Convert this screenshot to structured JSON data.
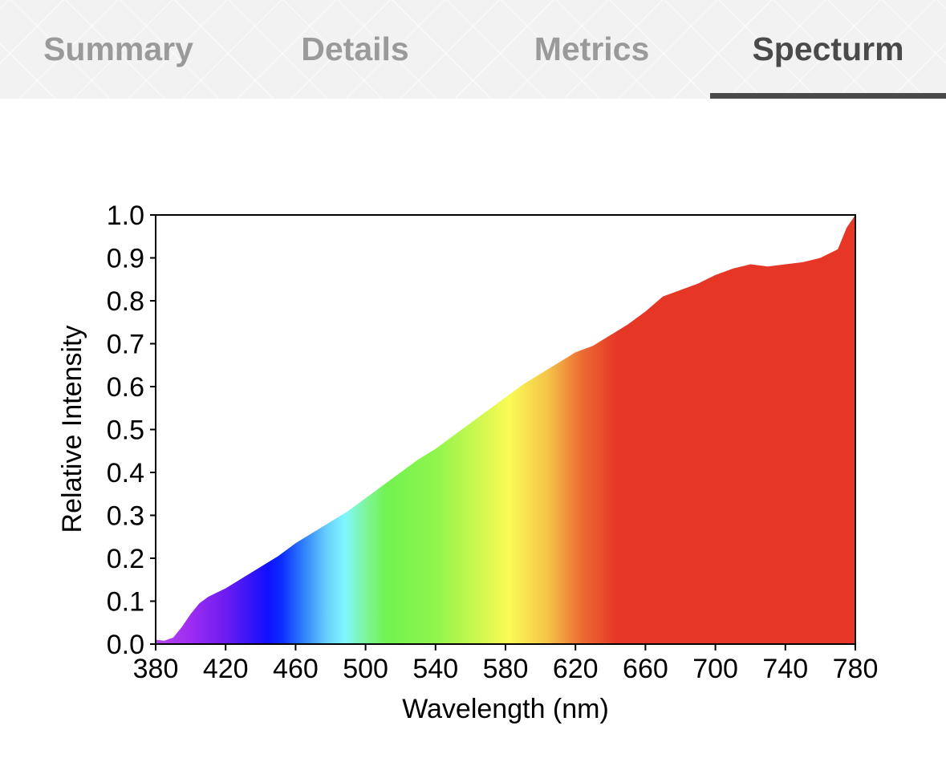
{
  "tabs": [
    {
      "label": "Summary",
      "active": false
    },
    {
      "label": "Details",
      "active": false
    },
    {
      "label": "Metrics",
      "active": false
    },
    {
      "label": "Specturm",
      "active": true
    }
  ],
  "colors": {
    "tab_inactive": "#9a9a9a",
    "tab_active": "#4a4a4a",
    "spectrum_red": "#e63626"
  },
  "chart_data": {
    "type": "area",
    "title": "",
    "xlabel": "Wavelength (nm)",
    "ylabel": "Relative Intensity",
    "xlim": [
      380,
      780
    ],
    "ylim": [
      0.0,
      1.0
    ],
    "xticks": [
      380,
      420,
      460,
      500,
      540,
      580,
      620,
      660,
      700,
      740,
      780
    ],
    "yticks": [
      "0.0",
      "0.1",
      "0.2",
      "0.3",
      "0.4",
      "0.5",
      "0.6",
      "0.7",
      "0.8",
      "0.9",
      "1.0"
    ],
    "grid": false,
    "fill": "visible-spectrum-gradient",
    "x": [
      380,
      385,
      390,
      395,
      400,
      405,
      410,
      415,
      420,
      430,
      440,
      450,
      460,
      470,
      480,
      490,
      500,
      510,
      520,
      530,
      540,
      550,
      560,
      570,
      580,
      590,
      600,
      610,
      620,
      630,
      640,
      650,
      660,
      670,
      680,
      690,
      700,
      710,
      720,
      730,
      740,
      750,
      760,
      770,
      775,
      780
    ],
    "y": [
      0.01,
      0.008,
      0.015,
      0.04,
      0.07,
      0.095,
      0.11,
      0.12,
      0.13,
      0.155,
      0.18,
      0.205,
      0.235,
      0.26,
      0.285,
      0.31,
      0.34,
      0.37,
      0.4,
      0.43,
      0.455,
      0.485,
      0.515,
      0.545,
      0.575,
      0.605,
      0.63,
      0.655,
      0.68,
      0.695,
      0.72,
      0.745,
      0.775,
      0.81,
      0.825,
      0.84,
      0.86,
      0.875,
      0.885,
      0.88,
      0.885,
      0.89,
      0.9,
      0.92,
      0.97,
      1.0
    ]
  }
}
